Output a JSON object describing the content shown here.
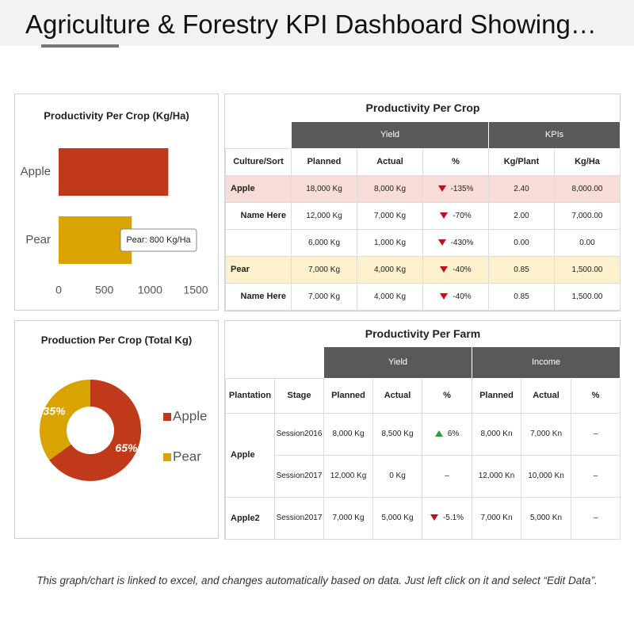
{
  "title": "Agriculture & Forestry KPI Dashboard Showing…",
  "chart_data": [
    {
      "type": "barh",
      "title": "Productivity Per Crop (Kg/Ha)",
      "categories": [
        "Apple",
        "Pear"
      ],
      "values": [
        1200,
        800
      ],
      "colors": [
        "#c0391b",
        "#d9a400"
      ],
      "xlim": [
        0,
        1500
      ],
      "xticks": [
        0,
        500,
        1000,
        1500
      ],
      "annotation": "Pear: 800 Kg/Ha"
    },
    {
      "type": "donut",
      "title": "Production Per Crop (Total Kg)",
      "categories": [
        "Apple",
        "Pear"
      ],
      "values": [
        65,
        35
      ],
      "value_labels": [
        "65%",
        "35%"
      ],
      "colors": [
        "#c0391b",
        "#d9a400"
      ]
    }
  ],
  "table1": {
    "title": "Productivity Per Crop",
    "groups": [
      "Yield",
      "KPIs"
    ],
    "header": [
      "Culture/Sort",
      "Planned",
      "Actual",
      "%",
      "Kg/Plant",
      "Kg/Ha"
    ],
    "rows": [
      [
        "Apple",
        "18,000 Kg",
        "8,000 Kg",
        "-135%",
        "2.40",
        "8,000.00"
      ],
      [
        "Name Here",
        "12,000 Kg",
        "7,000 Kg",
        "-70%",
        "2.00",
        "7,000.00"
      ],
      [
        null,
        "6,000 Kg",
        "1,000 Kg",
        "-430%",
        "0.00",
        "0.00"
      ],
      [
        "Pear",
        "7,000 Kg",
        "4,000 Kg",
        "-40%",
        "0.85",
        "1,500.00"
      ],
      [
        "Name Here",
        "7,000 Kg",
        "4,000 Kg",
        "-40%",
        "0.85",
        "1,500.00"
      ]
    ]
  },
  "table2": {
    "title": "Productivity Per Farm",
    "groups": [
      "Yield",
      "Income"
    ],
    "header": [
      "Plantation",
      "Stage",
      "Planned",
      "Actual",
      "%",
      "Planned",
      "Actual",
      "%"
    ],
    "rows": [
      {
        "plantation": "Apple",
        "entries": [
          [
            "Session2016",
            "8,000 Kg",
            "8,500 Kg",
            "6%",
            "8,000 Kn",
            "7,000 Kn",
            "–"
          ],
          [
            "Session2017",
            "12,000 Kg",
            "0 Kg",
            "–",
            "12,000 Kn",
            "10,000 Kn",
            "–"
          ]
        ]
      },
      {
        "plantation": "Apple2",
        "entries": [
          [
            "Session2017",
            "7,000 Kg",
            "5,000 Kg",
            "-5.1%",
            "7,000 Kn",
            "5,000 Kn",
            "–"
          ]
        ]
      }
    ]
  },
  "footer": "This graph/chart is linked to excel, and changes automatically based on data.  Just left click on it and select “Edit Data”."
}
